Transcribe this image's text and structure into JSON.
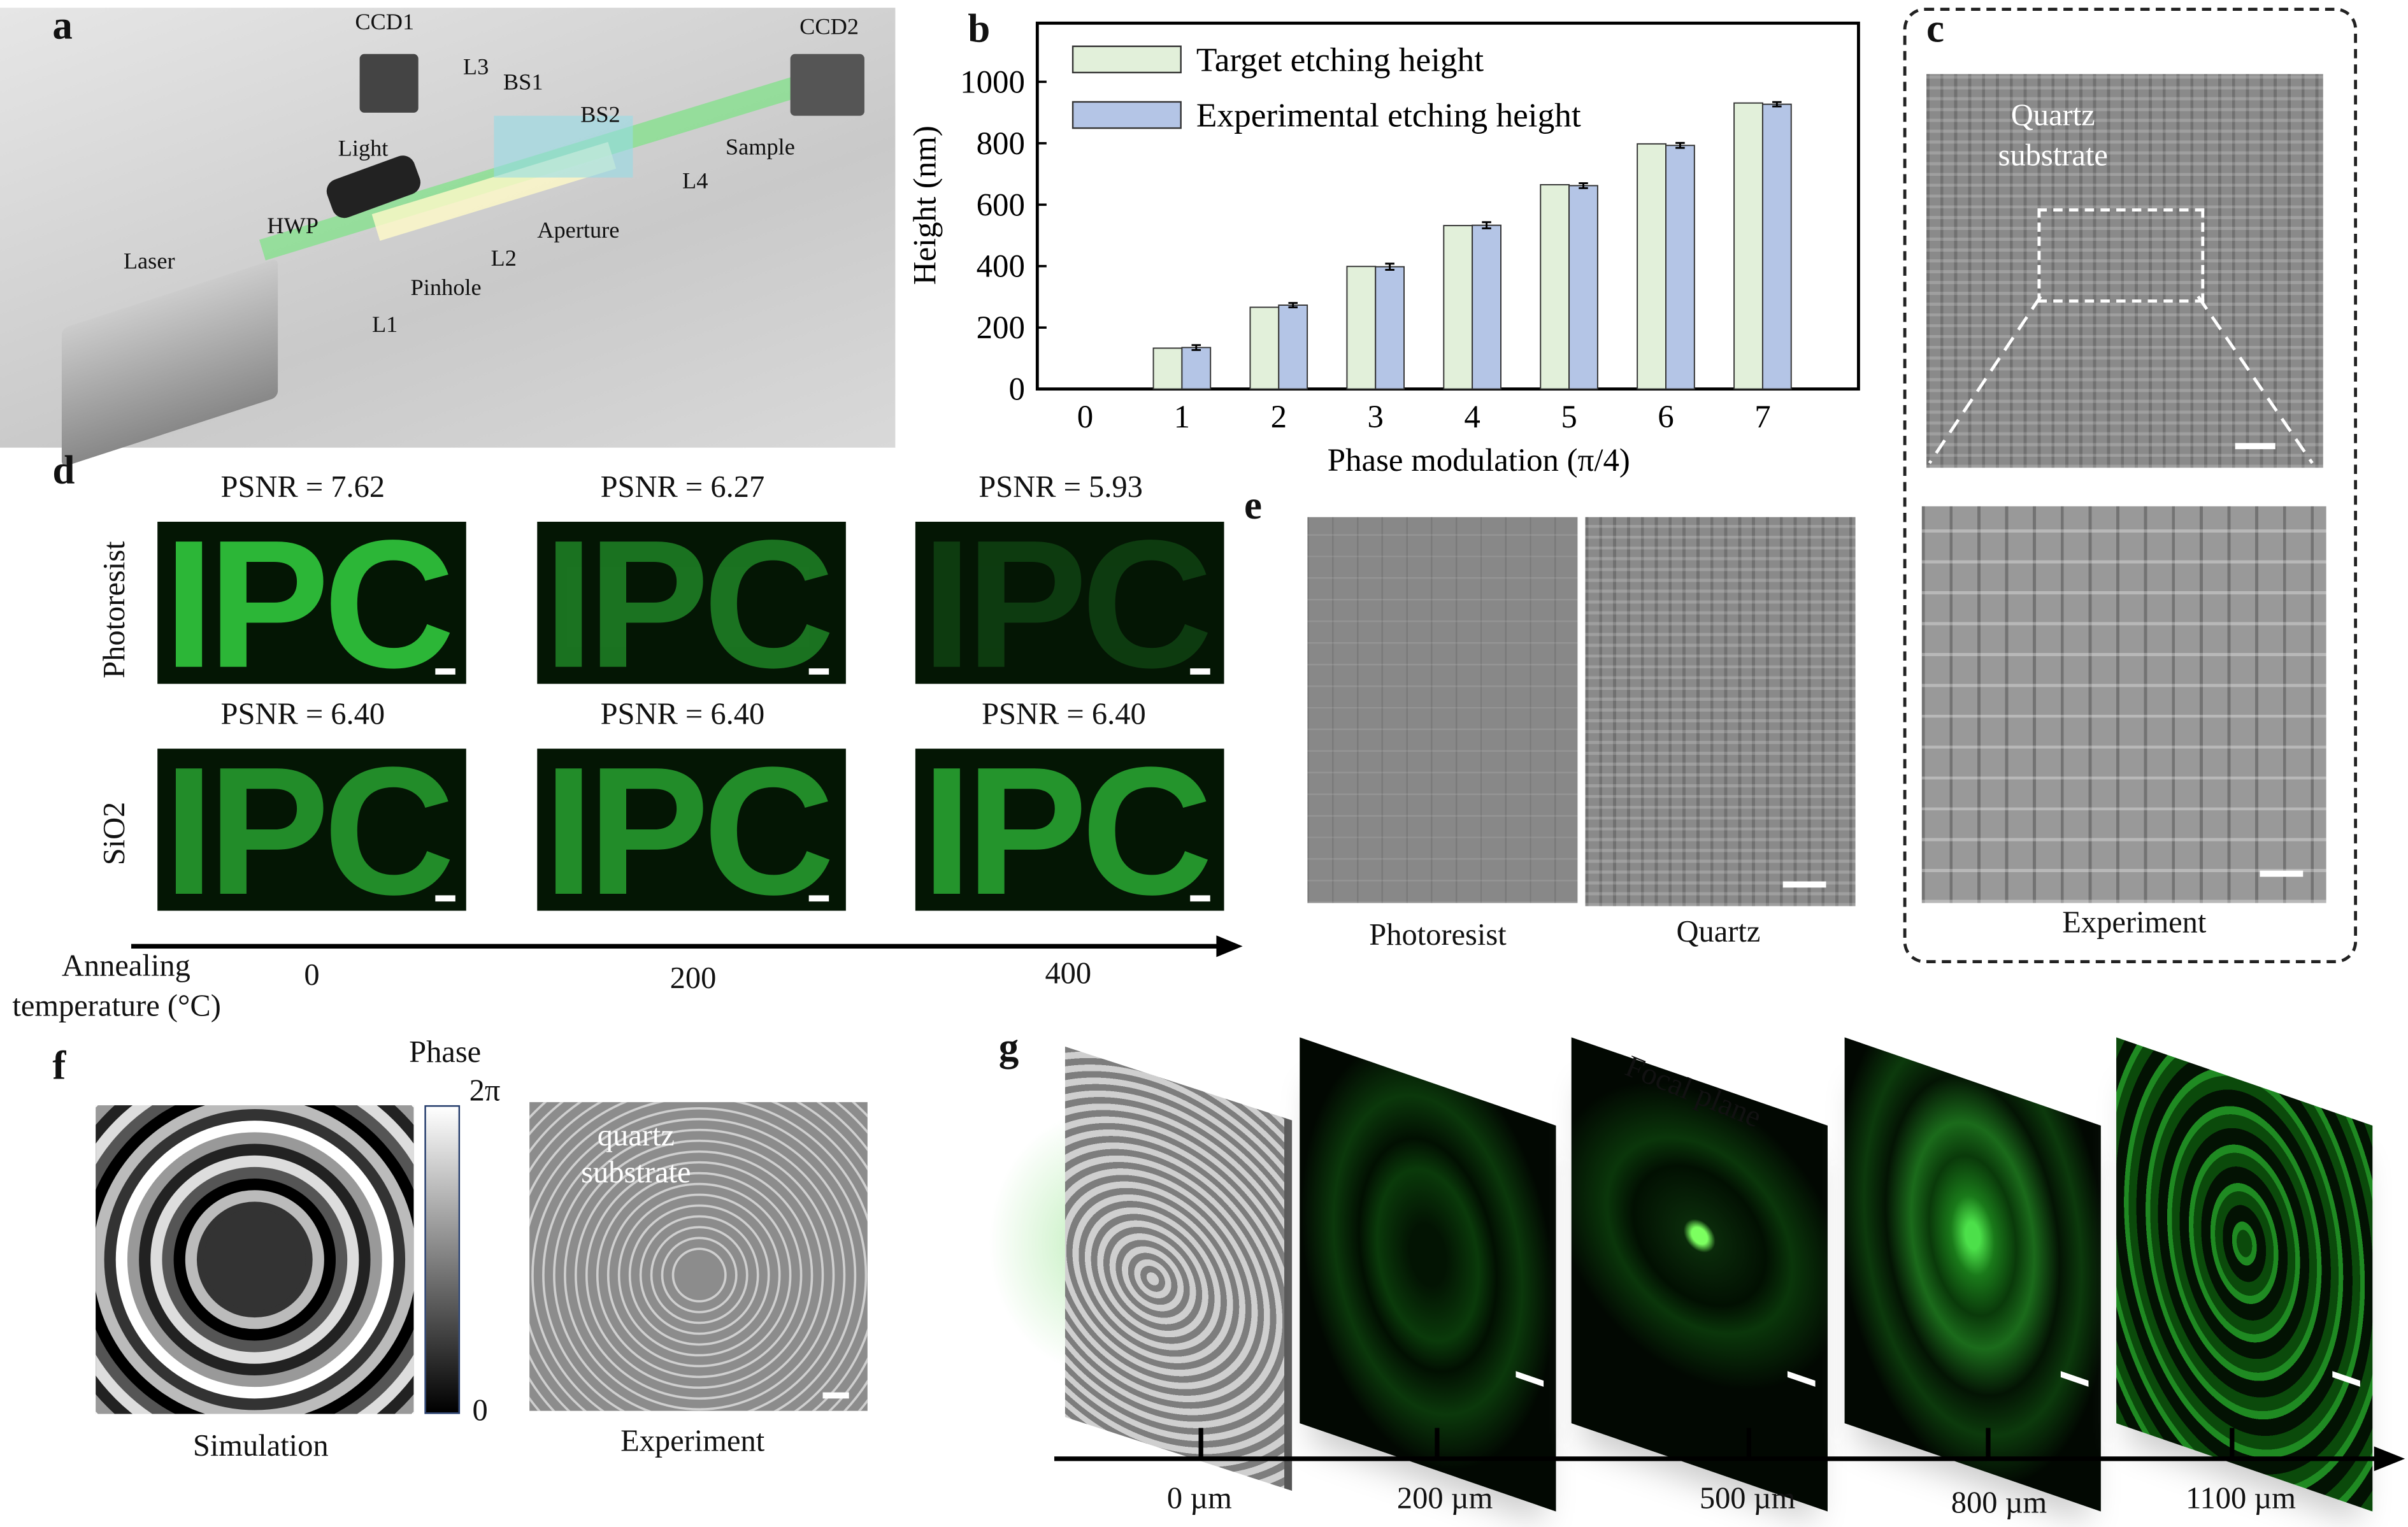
{
  "panels": {
    "a": {
      "label": "a",
      "components": [
        "CCD1",
        "L3",
        "BS1",
        "CCD2",
        "BS2",
        "Light",
        "Sample",
        "L4",
        "HWP",
        "Aperture",
        "L2",
        "Laser",
        "Pinhole",
        "L1"
      ]
    },
    "b": {
      "label": "b"
    },
    "c": {
      "label": "c",
      "top_image_label": "Quartz substrate",
      "caption": "Experiment"
    },
    "d": {
      "label": "d",
      "row_labels": [
        "Photoresist",
        "SiO2"
      ],
      "psnr_row1": [
        "PSNR = 7.62",
        "PSNR = 6.27",
        "PSNR = 5.93"
      ],
      "psnr_row2": [
        "PSNR = 6.40",
        "PSNR = 6.40",
        "PSNR = 6.40"
      ],
      "image_text": "IPC",
      "axis_label_1": "Annealing",
      "axis_label_2": "temperature (°C)",
      "axis_ticks": [
        "0",
        "200",
        "400"
      ]
    },
    "e": {
      "label": "e",
      "captions": [
        "Photoresist",
        "Quartz"
      ]
    },
    "f": {
      "label": "f",
      "colorbar_title": "Phase",
      "colorbar_max": "2π",
      "colorbar_min": "0",
      "image_label": "quartz substrate",
      "captions": [
        "Simulation",
        "Experiment"
      ]
    },
    "g": {
      "label": "g",
      "annotation": "Focal plane",
      "ticks": [
        "0 µm",
        "200 µm",
        "500 µm",
        "800 µm",
        "1100 µm"
      ]
    }
  },
  "chart_data": {
    "type": "bar",
    "title": "",
    "xlabel": "Phase modulation (π/4)",
    "ylabel": "Height (nm)",
    "categories": [
      "0",
      "1",
      "2",
      "3",
      "4",
      "5",
      "6",
      "7"
    ],
    "yticks": [
      "0",
      "200",
      "400",
      "600",
      "800",
      "1000"
    ],
    "ylim": [
      0,
      1200
    ],
    "legend": "top-left",
    "grid": false,
    "series": [
      {
        "name": "Target etching height",
        "color": "#e2f0da",
        "values": [
          0,
          133,
          266,
          399,
          532,
          665,
          798,
          931
        ]
      },
      {
        "name": "Experimental etching height",
        "color": "#b4c5e6",
        "values": [
          0,
          135,
          273,
          398,
          533,
          662,
          793,
          927
        ],
        "error": [
          0,
          8,
          7,
          10,
          10,
          8,
          8,
          7
        ]
      }
    ]
  }
}
